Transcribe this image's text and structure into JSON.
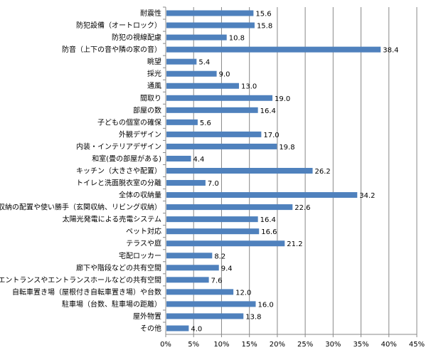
{
  "chart_data": {
    "type": "bar",
    "orientation": "horizontal",
    "categories": [
      "耐震性",
      "防犯設備（オートロック）",
      "防犯の視線配慮",
      "防音（上下の音や隣の家の音）",
      "眺望",
      "採光",
      "通風",
      "間取り",
      "部屋の数",
      "子どもの個室の確保",
      "外観デザイン",
      "内装・インテリアデザイン",
      "和室(畳の部屋がある)",
      "キッチン（大きさや配置）",
      "トイレと洗面脱衣室の分離",
      "全体の収納量",
      "収納の配置や使い勝手（玄関収納、リビング収納）",
      "太陽光発電による売電システム",
      "ペット対応",
      "テラスや庭",
      "宅配ロッカー",
      "廊下や階段などの共有空間",
      "エントランスやエントランスホールなどの共有空間",
      "自転車置き場（屋根付き自転車置き場）や台数",
      "駐車場（台数、駐車場の距離）",
      "屋外物置",
      "その他"
    ],
    "values": [
      15.6,
      15.8,
      10.8,
      38.4,
      5.4,
      9.0,
      13.0,
      19.0,
      16.4,
      5.6,
      17.0,
      19.8,
      4.4,
      26.2,
      7.0,
      34.2,
      22.6,
      16.4,
      16.6,
      21.2,
      8.2,
      9.4,
      7.6,
      12.0,
      16.0,
      13.8,
      4.0
    ],
    "value_labels": [
      "15.6",
      "15.8",
      "10.8",
      "38.4",
      "5.4",
      "9.0",
      "13.0",
      "19.0",
      "16.4",
      "5.6",
      "17.0",
      "19.8",
      "4.4",
      "26.2",
      "7.0",
      "34.2",
      "22.6",
      "16.4",
      "16.6",
      "21.2",
      "8.2",
      "9.4",
      "7.6",
      "12.0",
      "16.0",
      "13.8",
      "4.0"
    ],
    "xlim": [
      0,
      45
    ],
    "xticks": [
      "0%",
      "5%",
      "10%",
      "15%",
      "20%",
      "25%",
      "30%",
      "35%",
      "40%",
      "45%"
    ],
    "grid": true,
    "bar_color": "#4F81BD",
    "title": "",
    "xlabel": "",
    "ylabel": ""
  }
}
